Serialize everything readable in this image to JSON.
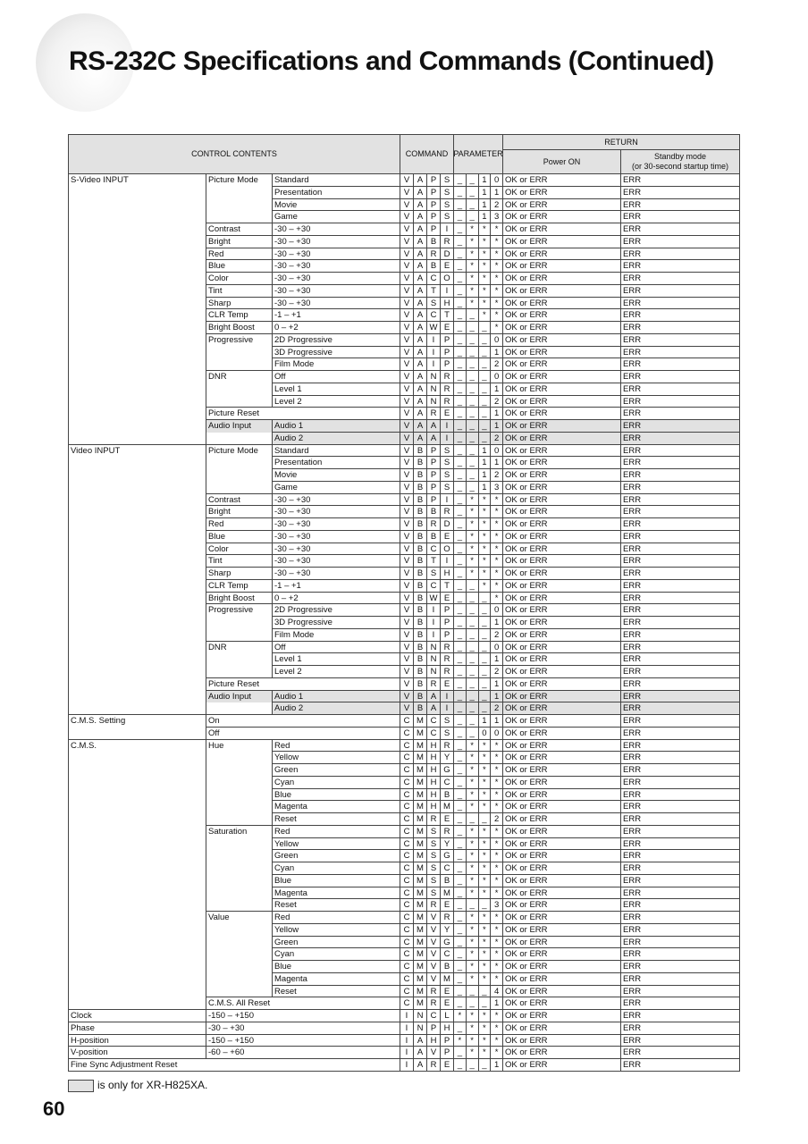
{
  "title": "RS-232C Specifications and Commands (Continued)",
  "header": {
    "control_contents": "CONTROL CONTENTS",
    "command": "COMMAND",
    "parameter": "PARAMETER",
    "return": "RETURN",
    "power_on": "Power ON",
    "standby": "Standby mode",
    "standby_note": "(or 30-second startup time)"
  },
  "table": {
    "shaded_rows": [
      20,
      21,
      42,
      43
    ],
    "rows": [
      [
        "S-Video INPUT",
        "Picture Mode",
        "Standard",
        "V",
        "A",
        "P",
        "S",
        "_",
        "_",
        "1",
        "0",
        "OK or ERR",
        "ERR"
      ],
      [
        null,
        null,
        "Presentation",
        "V",
        "A",
        "P",
        "S",
        "_",
        "_",
        "1",
        "1",
        "OK or ERR",
        "ERR"
      ],
      [
        null,
        null,
        "Movie",
        "V",
        "A",
        "P",
        "S",
        "_",
        "_",
        "1",
        "2",
        "OK or ERR",
        "ERR"
      ],
      [
        null,
        null,
        "Game",
        "V",
        "A",
        "P",
        "S",
        "_",
        "_",
        "1",
        "3",
        "OK or ERR",
        "ERR"
      ],
      [
        null,
        "Contrast",
        "-30 – +30",
        "V",
        "A",
        "P",
        "I",
        "_",
        "*",
        "*",
        "*",
        "OK or ERR",
        "ERR"
      ],
      [
        null,
        "Bright",
        "-30 – +30",
        "V",
        "A",
        "B",
        "R",
        "_",
        "*",
        "*",
        "*",
        "OK or ERR",
        "ERR"
      ],
      [
        null,
        "Red",
        "-30 – +30",
        "V",
        "A",
        "R",
        "D",
        "_",
        "*",
        "*",
        "*",
        "OK or ERR",
        "ERR"
      ],
      [
        null,
        "Blue",
        "-30 – +30",
        "V",
        "A",
        "B",
        "E",
        "_",
        "*",
        "*",
        "*",
        "OK or ERR",
        "ERR"
      ],
      [
        null,
        "Color",
        "-30 – +30",
        "V",
        "A",
        "C",
        "O",
        "_",
        "*",
        "*",
        "*",
        "OK or ERR",
        "ERR"
      ],
      [
        null,
        "Tint",
        "-30 – +30",
        "V",
        "A",
        "T",
        "I",
        "_",
        "*",
        "*",
        "*",
        "OK or ERR",
        "ERR"
      ],
      [
        null,
        "Sharp",
        "-30 – +30",
        "V",
        "A",
        "S",
        "H",
        "_",
        "*",
        "*",
        "*",
        "OK or ERR",
        "ERR"
      ],
      [
        null,
        "CLR Temp",
        "-1 – +1",
        "V",
        "A",
        "C",
        "T",
        "_",
        "_",
        "*",
        "*",
        "OK or ERR",
        "ERR"
      ],
      [
        null,
        "Bright Boost",
        "0 – +2",
        "V",
        "A",
        "W",
        "E",
        "_",
        "_",
        "_",
        "*",
        "OK or ERR",
        "ERR"
      ],
      [
        null,
        "Progressive",
        "2D Progressive",
        "V",
        "A",
        "I",
        "P",
        "_",
        "_",
        "_",
        "0",
        "OK or ERR",
        "ERR"
      ],
      [
        null,
        null,
        "3D Progressive",
        "V",
        "A",
        "I",
        "P",
        "_",
        "_",
        "_",
        "1",
        "OK or ERR",
        "ERR"
      ],
      [
        null,
        null,
        "Film Mode",
        "V",
        "A",
        "I",
        "P",
        "_",
        "_",
        "_",
        "2",
        "OK or ERR",
        "ERR"
      ],
      [
        null,
        "DNR",
        "Off",
        "V",
        "A",
        "N",
        "R",
        "_",
        "_",
        "_",
        "0",
        "OK or ERR",
        "ERR"
      ],
      [
        null,
        null,
        "Level 1",
        "V",
        "A",
        "N",
        "R",
        "_",
        "_",
        "_",
        "1",
        "OK or ERR",
        "ERR"
      ],
      [
        null,
        null,
        "Level 2",
        "V",
        "A",
        "N",
        "R",
        "_",
        "_",
        "_",
        "2",
        "OK or ERR",
        "ERR"
      ],
      [
        null,
        "Picture Reset",
        null,
        "V",
        "A",
        "R",
        "E",
        "_",
        "_",
        "_",
        "1",
        "OK or ERR",
        "ERR"
      ],
      [
        null,
        "Audio Input",
        "Audio 1",
        "V",
        "A",
        "A",
        "I",
        "_",
        "_",
        "_",
        "1",
        "OK or ERR",
        "ERR"
      ],
      [
        null,
        null,
        "Audio 2",
        "V",
        "A",
        "A",
        "I",
        "_",
        "_",
        "_",
        "2",
        "OK or ERR",
        "ERR"
      ],
      [
        "Video INPUT",
        "Picture Mode",
        "Standard",
        "V",
        "B",
        "P",
        "S",
        "_",
        "_",
        "1",
        "0",
        "OK or ERR",
        "ERR"
      ],
      [
        null,
        null,
        "Presentation",
        "V",
        "B",
        "P",
        "S",
        "_",
        "_",
        "1",
        "1",
        "OK or ERR",
        "ERR"
      ],
      [
        null,
        null,
        "Movie",
        "V",
        "B",
        "P",
        "S",
        "_",
        "_",
        "1",
        "2",
        "OK or ERR",
        "ERR"
      ],
      [
        null,
        null,
        "Game",
        "V",
        "B",
        "P",
        "S",
        "_",
        "_",
        "1",
        "3",
        "OK or ERR",
        "ERR"
      ],
      [
        null,
        "Contrast",
        "-30 – +30",
        "V",
        "B",
        "P",
        "I",
        "_",
        "*",
        "*",
        "*",
        "OK or ERR",
        "ERR"
      ],
      [
        null,
        "Bright",
        "-30 – +30",
        "V",
        "B",
        "B",
        "R",
        "_",
        "*",
        "*",
        "*",
        "OK or ERR",
        "ERR"
      ],
      [
        null,
        "Red",
        "-30 – +30",
        "V",
        "B",
        "R",
        "D",
        "_",
        "*",
        "*",
        "*",
        "OK or ERR",
        "ERR"
      ],
      [
        null,
        "Blue",
        "-30 – +30",
        "V",
        "B",
        "B",
        "E",
        "_",
        "*",
        "*",
        "*",
        "OK or ERR",
        "ERR"
      ],
      [
        null,
        "Color",
        "-30 – +30",
        "V",
        "B",
        "C",
        "O",
        "_",
        "*",
        "*",
        "*",
        "OK or ERR",
        "ERR"
      ],
      [
        null,
        "Tint",
        "-30 – +30",
        "V",
        "B",
        "T",
        "I",
        "_",
        "*",
        "*",
        "*",
        "OK or ERR",
        "ERR"
      ],
      [
        null,
        "Sharp",
        "-30 – +30",
        "V",
        "B",
        "S",
        "H",
        "_",
        "*",
        "*",
        "*",
        "OK or ERR",
        "ERR"
      ],
      [
        null,
        "CLR Temp",
        "-1 – +1",
        "V",
        "B",
        "C",
        "T",
        "_",
        "_",
        "*",
        "*",
        "OK or ERR",
        "ERR"
      ],
      [
        null,
        "Bright Boost",
        "0 – +2",
        "V",
        "B",
        "W",
        "E",
        "_",
        "_",
        "_",
        "*",
        "OK or ERR",
        "ERR"
      ],
      [
        null,
        "Progressive",
        "2D Progressive",
        "V",
        "B",
        "I",
        "P",
        "_",
        "_",
        "_",
        "0",
        "OK or ERR",
        "ERR"
      ],
      [
        null,
        null,
        "3D Progressive",
        "V",
        "B",
        "I",
        "P",
        "_",
        "_",
        "_",
        "1",
        "OK or ERR",
        "ERR"
      ],
      [
        null,
        null,
        "Film Mode",
        "V",
        "B",
        "I",
        "P",
        "_",
        "_",
        "_",
        "2",
        "OK or ERR",
        "ERR"
      ],
      [
        null,
        "DNR",
        "Off",
        "V",
        "B",
        "N",
        "R",
        "_",
        "_",
        "_",
        "0",
        "OK or ERR",
        "ERR"
      ],
      [
        null,
        null,
        "Level 1",
        "V",
        "B",
        "N",
        "R",
        "_",
        "_",
        "_",
        "1",
        "OK or ERR",
        "ERR"
      ],
      [
        null,
        null,
        "Level 2",
        "V",
        "B",
        "N",
        "R",
        "_",
        "_",
        "_",
        "2",
        "OK or ERR",
        "ERR"
      ],
      [
        null,
        "Picture Reset",
        null,
        "V",
        "B",
        "R",
        "E",
        "_",
        "_",
        "_",
        "1",
        "OK or ERR",
        "ERR"
      ],
      [
        null,
        "Audio Input",
        "Audio 1",
        "V",
        "B",
        "A",
        "I",
        "_",
        "_",
        "_",
        "1",
        "OK or ERR",
        "ERR"
      ],
      [
        null,
        null,
        "Audio 2",
        "V",
        "B",
        "A",
        "I",
        "_",
        "_",
        "_",
        "2",
        "OK or ERR",
        "ERR"
      ],
      [
        "C.M.S. Setting",
        "On",
        null,
        "C",
        "M",
        "C",
        "S",
        "_",
        "_",
        "1",
        "1",
        "OK or ERR",
        "ERR"
      ],
      [
        null,
        "Off",
        null,
        "C",
        "M",
        "C",
        "S",
        "_",
        "_",
        "0",
        "0",
        "OK or ERR",
        "ERR"
      ],
      [
        "C.M.S.",
        "Hue",
        "Red",
        "C",
        "M",
        "H",
        "R",
        "_",
        "*",
        "*",
        "*",
        "OK or ERR",
        "ERR"
      ],
      [
        null,
        null,
        "Yellow",
        "C",
        "M",
        "H",
        "Y",
        "_",
        "*",
        "*",
        "*",
        "OK or ERR",
        "ERR"
      ],
      [
        null,
        null,
        "Green",
        "C",
        "M",
        "H",
        "G",
        "_",
        "*",
        "*",
        "*",
        "OK or ERR",
        "ERR"
      ],
      [
        null,
        null,
        "Cyan",
        "C",
        "M",
        "H",
        "C",
        "_",
        "*",
        "*",
        "*",
        "OK or ERR",
        "ERR"
      ],
      [
        null,
        null,
        "Blue",
        "C",
        "M",
        "H",
        "B",
        "_",
        "*",
        "*",
        "*",
        "OK or ERR",
        "ERR"
      ],
      [
        null,
        null,
        "Magenta",
        "C",
        "M",
        "H",
        "M",
        "_",
        "*",
        "*",
        "*",
        "OK or ERR",
        "ERR"
      ],
      [
        null,
        null,
        "Reset",
        "C",
        "M",
        "R",
        "E",
        "_",
        "_",
        "_",
        "2",
        "OK or ERR",
        "ERR"
      ],
      [
        null,
        "Saturation",
        "Red",
        "C",
        "M",
        "S",
        "R",
        "_",
        "*",
        "*",
        "*",
        "OK or ERR",
        "ERR"
      ],
      [
        null,
        null,
        "Yellow",
        "C",
        "M",
        "S",
        "Y",
        "_",
        "*",
        "*",
        "*",
        "OK or ERR",
        "ERR"
      ],
      [
        null,
        null,
        "Green",
        "C",
        "M",
        "S",
        "G",
        "_",
        "*",
        "*",
        "*",
        "OK or ERR",
        "ERR"
      ],
      [
        null,
        null,
        "Cyan",
        "C",
        "M",
        "S",
        "C",
        "_",
        "*",
        "*",
        "*",
        "OK or ERR",
        "ERR"
      ],
      [
        null,
        null,
        "Blue",
        "C",
        "M",
        "S",
        "B",
        "_",
        "*",
        "*",
        "*",
        "OK or ERR",
        "ERR"
      ],
      [
        null,
        null,
        "Magenta",
        "C",
        "M",
        "S",
        "M",
        "_",
        "*",
        "*",
        "*",
        "OK or ERR",
        "ERR"
      ],
      [
        null,
        null,
        "Reset",
        "C",
        "M",
        "R",
        "E",
        "_",
        "_",
        "_",
        "3",
        "OK or ERR",
        "ERR"
      ],
      [
        null,
        "Value",
        "Red",
        "C",
        "M",
        "V",
        "R",
        "_",
        "*",
        "*",
        "*",
        "OK or ERR",
        "ERR"
      ],
      [
        null,
        null,
        "Yellow",
        "C",
        "M",
        "V",
        "Y",
        "_",
        "*",
        "*",
        "*",
        "OK or ERR",
        "ERR"
      ],
      [
        null,
        null,
        "Green",
        "C",
        "M",
        "V",
        "G",
        "_",
        "*",
        "*",
        "*",
        "OK or ERR",
        "ERR"
      ],
      [
        null,
        null,
        "Cyan",
        "C",
        "M",
        "V",
        "C",
        "_",
        "*",
        "*",
        "*",
        "OK or ERR",
        "ERR"
      ],
      [
        null,
        null,
        "Blue",
        "C",
        "M",
        "V",
        "B",
        "_",
        "*",
        "*",
        "*",
        "OK or ERR",
        "ERR"
      ],
      [
        null,
        null,
        "Magenta",
        "C",
        "M",
        "V",
        "M",
        "_",
        "*",
        "*",
        "*",
        "OK or ERR",
        "ERR"
      ],
      [
        null,
        null,
        "Reset",
        "C",
        "M",
        "R",
        "E",
        "_",
        "_",
        "_",
        "4",
        "OK or ERR",
        "ERR"
      ],
      [
        null,
        "C.M.S. All Reset",
        null,
        "C",
        "M",
        "R",
        "E",
        "_",
        "_",
        "_",
        "1",
        "OK or ERR",
        "ERR"
      ],
      [
        "Clock",
        "-150 – +150",
        null,
        "I",
        "N",
        "C",
        "L",
        "*",
        "*",
        "*",
        "*",
        "OK or ERR",
        "ERR"
      ],
      [
        "Phase",
        "-30 – +30",
        null,
        "I",
        "N",
        "P",
        "H",
        "_",
        "*",
        "*",
        "*",
        "OK or ERR",
        "ERR"
      ],
      [
        "H-position",
        "-150 – +150",
        null,
        "I",
        "A",
        "H",
        "P",
        "*",
        "*",
        "*",
        "*",
        "OK or ERR",
        "ERR"
      ],
      [
        "V-position",
        "-60 – +60",
        null,
        "I",
        "A",
        "V",
        "P",
        "_",
        "*",
        "*",
        "*",
        "OK or ERR",
        "ERR"
      ],
      [
        "Fine Sync Adjustment Reset",
        null,
        null,
        "I",
        "A",
        "R",
        "E",
        "_",
        "_",
        "_",
        "1",
        "OK or ERR",
        "ERR"
      ]
    ]
  },
  "note": "is only for XR-H825XA.",
  "page_number": "60"
}
